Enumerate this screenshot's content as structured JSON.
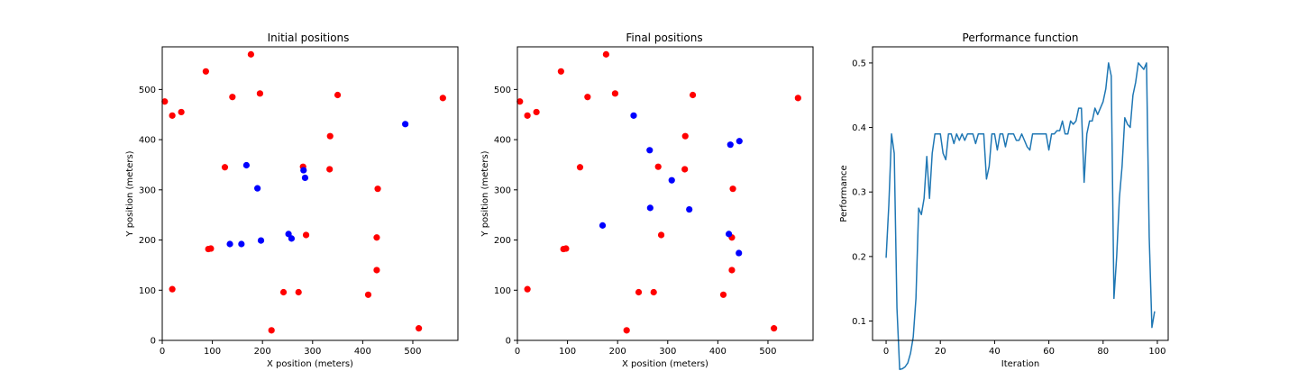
{
  "colors": {
    "red": "#ff0000",
    "blue": "#0000ff",
    "line": "#1f77b4"
  },
  "chart_data": [
    {
      "type": "scatter",
      "title": "Initial positions",
      "xlabel": "X position (meters)",
      "ylabel": "Y position (meters)",
      "xlim": [
        0,
        590
      ],
      "ylim": [
        0,
        585
      ],
      "xticks": [
        0,
        100,
        200,
        300,
        400,
        500
      ],
      "yticks": [
        0,
        100,
        200,
        300,
        400,
        500
      ],
      "grid": false,
      "series": [
        {
          "color": "red",
          "points": [
            [
              177,
              570
            ],
            [
              87,
              536
            ],
            [
              5,
              476
            ],
            [
              20,
              448
            ],
            [
              38,
              455
            ],
            [
              140,
              485
            ],
            [
              195,
              492
            ],
            [
              350,
              489
            ],
            [
              560,
              483
            ],
            [
              335,
              407
            ],
            [
              125,
              345
            ],
            [
              281,
              346
            ],
            [
              334,
              341
            ],
            [
              430,
              302
            ],
            [
              287,
              210
            ],
            [
              428,
              205
            ],
            [
              92,
              182
            ],
            [
              97,
              183
            ],
            [
              20,
              102
            ],
            [
              428,
              140
            ],
            [
              242,
              96
            ],
            [
              272,
              96
            ],
            [
              411,
              91
            ],
            [
              512,
              24
            ],
            [
              218,
              20
            ]
          ]
        },
        {
          "color": "blue",
          "points": [
            [
              485,
              431
            ],
            [
              168,
              349
            ],
            [
              282,
              339
            ],
            [
              285,
              324
            ],
            [
              190,
              303
            ],
            [
              252,
              212
            ],
            [
              258,
              203
            ],
            [
              197,
              199
            ],
            [
              135,
              192
            ],
            [
              158,
              192
            ]
          ]
        }
      ]
    },
    {
      "type": "scatter",
      "title": "Final positions",
      "xlabel": "X position (meters)",
      "ylabel": "Y position (meters)",
      "xlim": [
        0,
        590
      ],
      "ylim": [
        0,
        585
      ],
      "xticks": [
        0,
        100,
        200,
        300,
        400,
        500
      ],
      "yticks": [
        0,
        100,
        200,
        300,
        400,
        500
      ],
      "grid": false,
      "series": [
        {
          "color": "red",
          "points": [
            [
              177,
              570
            ],
            [
              87,
              536
            ],
            [
              5,
              476
            ],
            [
              20,
              448
            ],
            [
              38,
              455
            ],
            [
              140,
              485
            ],
            [
              195,
              492
            ],
            [
              350,
              489
            ],
            [
              560,
              483
            ],
            [
              335,
              407
            ],
            [
              125,
              345
            ],
            [
              281,
              346
            ],
            [
              334,
              341
            ],
            [
              430,
              302
            ],
            [
              287,
              210
            ],
            [
              428,
              205
            ],
            [
              92,
              182
            ],
            [
              97,
              183
            ],
            [
              20,
              102
            ],
            [
              428,
              140
            ],
            [
              242,
              96
            ],
            [
              272,
              96
            ],
            [
              411,
              91
            ],
            [
              512,
              24
            ],
            [
              218,
              20
            ]
          ]
        },
        {
          "color": "blue",
          "points": [
            [
              232,
              448
            ],
            [
              443,
              397
            ],
            [
              425,
              390
            ],
            [
              264,
              379
            ],
            [
              308,
              319
            ],
            [
              265,
              264
            ],
            [
              343,
              261
            ],
            [
              170,
              229
            ],
            [
              422,
              212
            ],
            [
              442,
              174
            ]
          ]
        }
      ]
    },
    {
      "type": "line",
      "title": "Performance function",
      "xlabel": "Iteration",
      "ylabel": "Performance",
      "xlim": [
        -5,
        104
      ],
      "ylim": [
        0.07,
        0.525
      ],
      "xticks": [
        0,
        20,
        40,
        60,
        80,
        100
      ],
      "yticks": [
        0.1,
        0.2,
        0.3,
        0.4,
        0.5
      ],
      "grid": false,
      "series": [
        {
          "color": "line",
          "x": [
            0,
            1,
            2,
            3,
            4,
            5,
            6,
            7,
            8,
            9,
            10,
            11,
            12,
            13,
            14,
            15,
            16,
            17,
            18,
            19,
            20,
            21,
            22,
            23,
            24,
            25,
            26,
            27,
            28,
            29,
            30,
            31,
            32,
            33,
            34,
            35,
            36,
            37,
            38,
            39,
            40,
            41,
            42,
            43,
            44,
            45,
            46,
            47,
            48,
            49,
            50,
            51,
            52,
            53,
            54,
            55,
            56,
            57,
            58,
            59,
            60,
            61,
            62,
            63,
            64,
            65,
            66,
            67,
            68,
            69,
            70,
            71,
            72,
            73,
            74,
            75,
            76,
            77,
            78,
            79,
            80,
            81,
            82,
            83,
            84,
            85,
            86,
            87,
            88,
            89,
            90,
            91,
            92,
            93,
            94,
            95,
            96,
            97,
            98,
            99
          ],
          "values": [
            0.198,
            0.28,
            0.39,
            0.36,
            0.12,
            0.025,
            0.026,
            0.029,
            0.035,
            0.05,
            0.075,
            0.135,
            0.275,
            0.265,
            0.29,
            0.355,
            0.29,
            0.36,
            0.39,
            0.39,
            0.39,
            0.36,
            0.35,
            0.39,
            0.39,
            0.375,
            0.39,
            0.38,
            0.39,
            0.38,
            0.39,
            0.39,
            0.39,
            0.375,
            0.39,
            0.39,
            0.39,
            0.32,
            0.34,
            0.39,
            0.39,
            0.365,
            0.39,
            0.39,
            0.37,
            0.39,
            0.39,
            0.39,
            0.38,
            0.38,
            0.39,
            0.38,
            0.37,
            0.365,
            0.39,
            0.39,
            0.39,
            0.39,
            0.39,
            0.39,
            0.365,
            0.39,
            0.39,
            0.395,
            0.395,
            0.41,
            0.39,
            0.39,
            0.41,
            0.405,
            0.41,
            0.43,
            0.43,
            0.315,
            0.39,
            0.41,
            0.41,
            0.43,
            0.42,
            0.43,
            0.44,
            0.46,
            0.5,
            0.48,
            0.135,
            0.2,
            0.29,
            0.34,
            0.415,
            0.405,
            0.4,
            0.45,
            0.47,
            0.5,
            0.495,
            0.49,
            0.5,
            0.23,
            0.09,
            0.115
          ]
        }
      ]
    }
  ]
}
